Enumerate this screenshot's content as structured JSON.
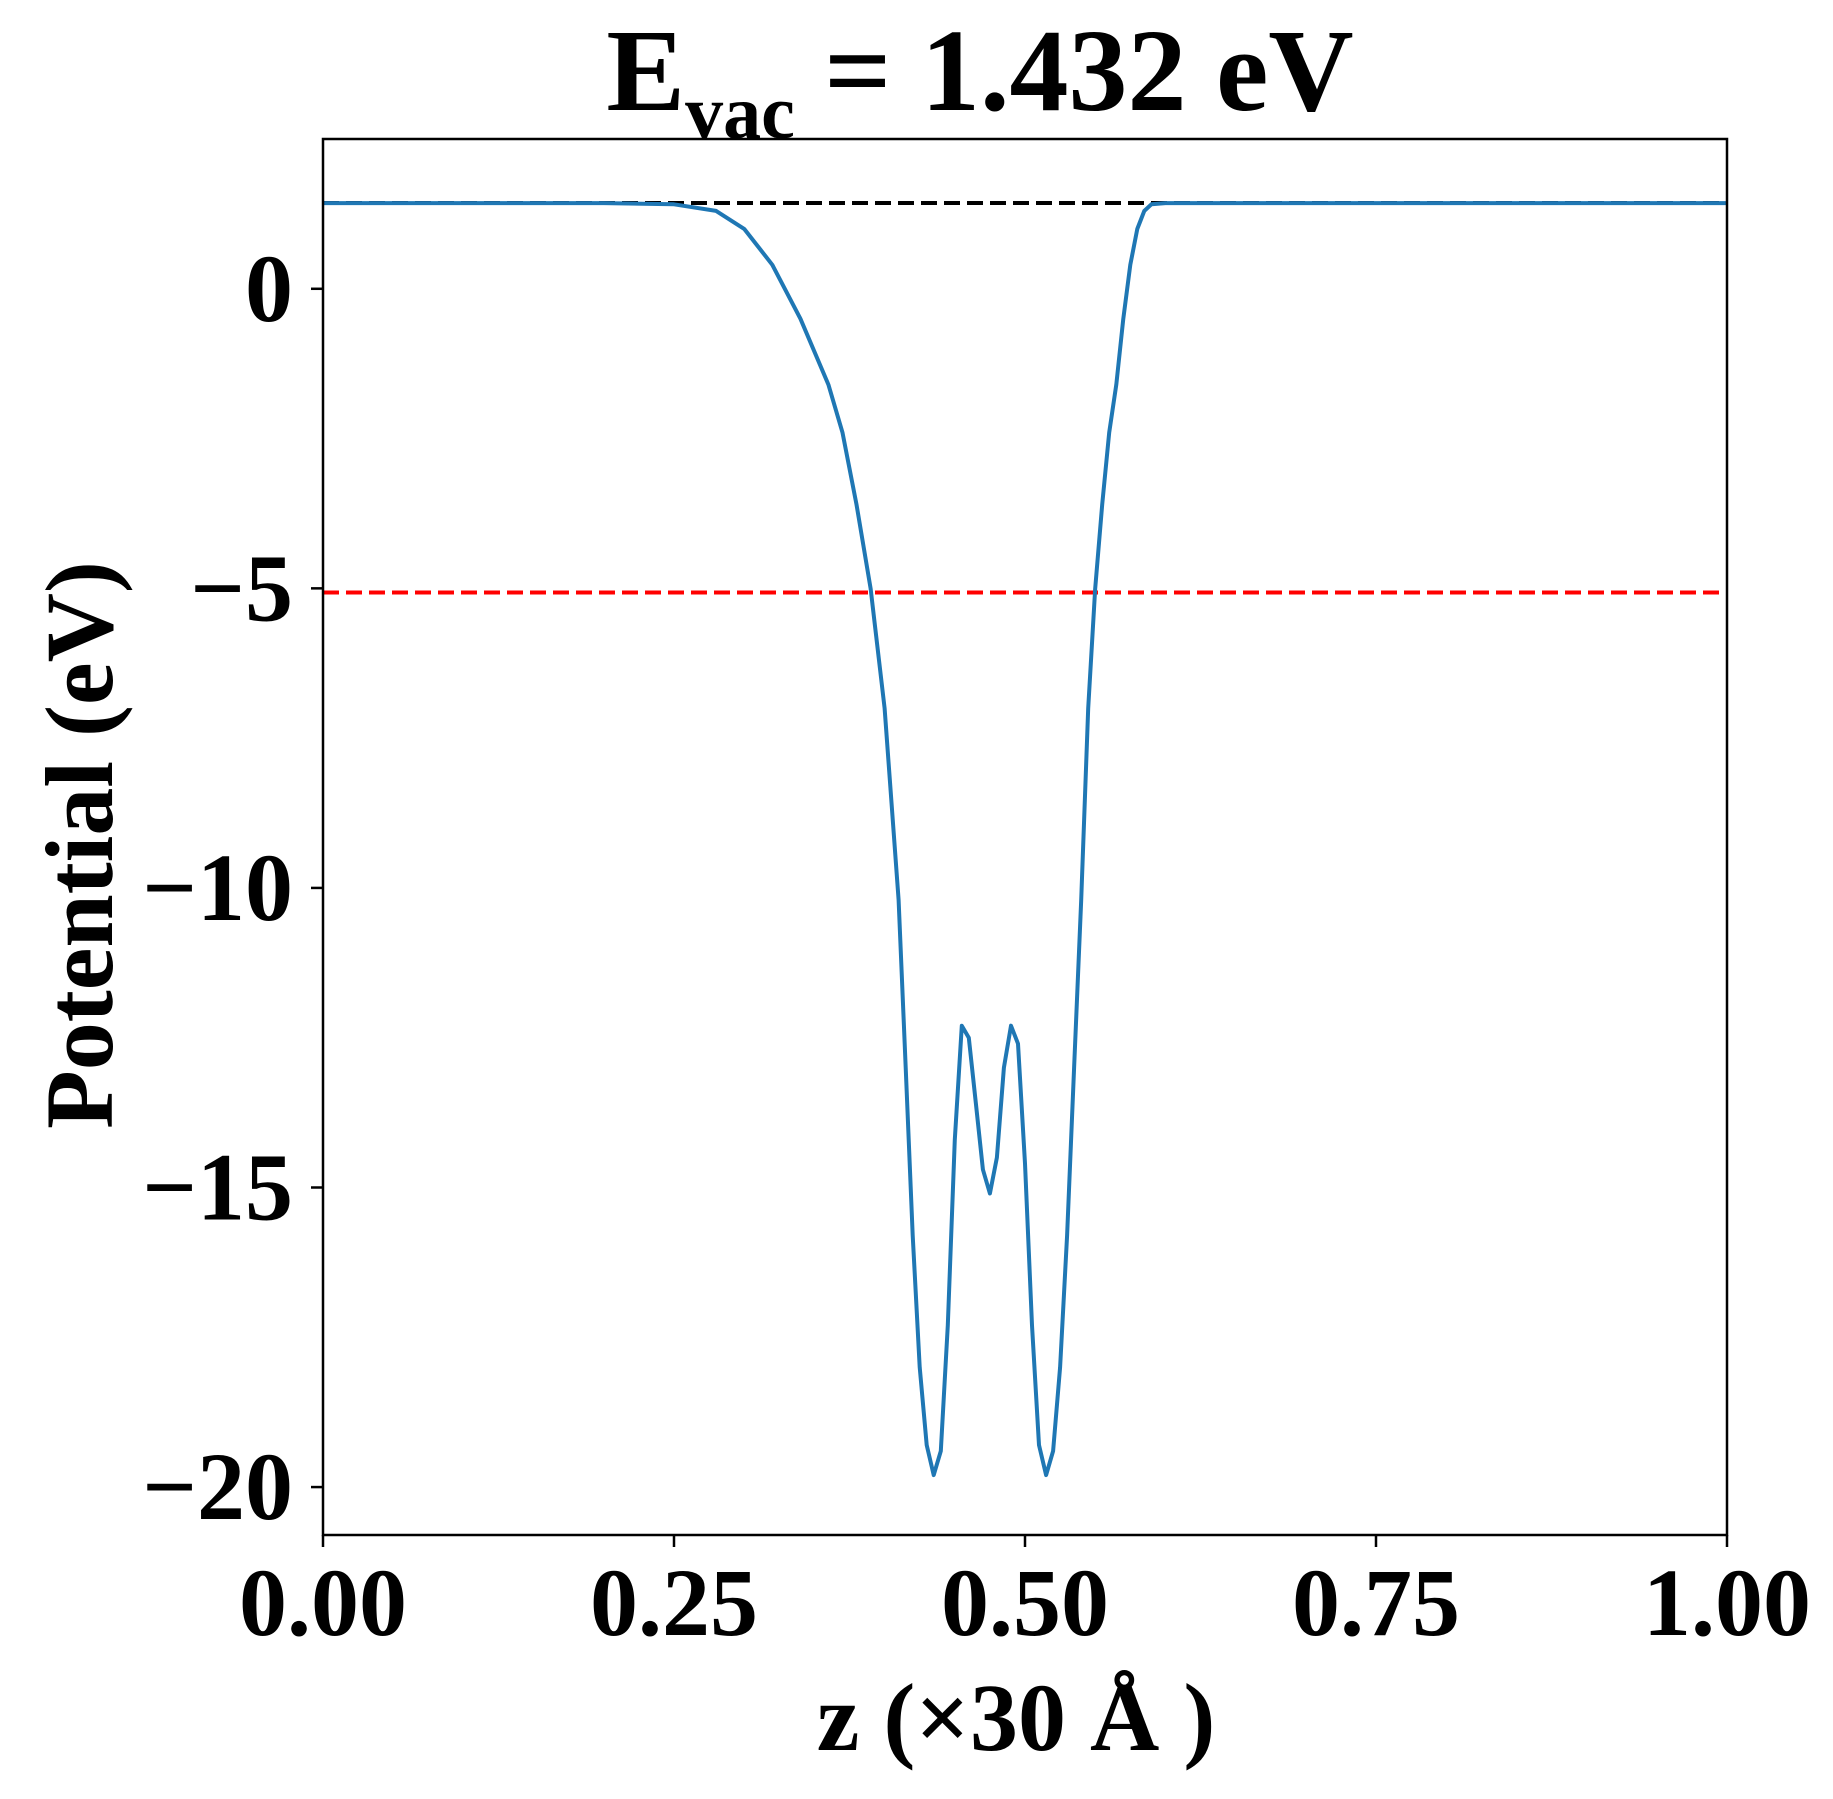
{
  "chart_data": {
    "type": "line",
    "title": {
      "prefix": "E",
      "subscript": "vac",
      "suffix": " = 1.432 eV"
    },
    "xlabel": "z (×30 Å )",
    "ylabel": "Potential (eV)",
    "xlim": [
      0,
      1
    ],
    "ylim": [
      -20.8,
      2.5
    ],
    "xticks": [
      {
        "value": 0.0,
        "label": "0.00"
      },
      {
        "value": 0.25,
        "label": "0.25"
      },
      {
        "value": 0.5,
        "label": "0.50"
      },
      {
        "value": 0.75,
        "label": "0.75"
      },
      {
        "value": 1.0,
        "label": "1.00"
      }
    ],
    "yticks": [
      {
        "value": 0,
        "label": "0"
      },
      {
        "value": -5,
        "label": "−5"
      },
      {
        "value": -10,
        "label": "−10"
      },
      {
        "value": -15,
        "label": "−15"
      },
      {
        "value": -20,
        "label": "−20"
      }
    ],
    "grid": false,
    "series": [
      {
        "color": "#1f77b4",
        "x": [
          0.0,
          0.05,
          0.1,
          0.15,
          0.2,
          0.25,
          0.28,
          0.3,
          0.32,
          0.34,
          0.36,
          0.37,
          0.38,
          0.39,
          0.4,
          0.41,
          0.415,
          0.42,
          0.425,
          0.43,
          0.435,
          0.44,
          0.445,
          0.45,
          0.455,
          0.46,
          0.465,
          0.47,
          0.475,
          0.48,
          0.485,
          0.49,
          0.495,
          0.5,
          0.505,
          0.51,
          0.515,
          0.52,
          0.525,
          0.53,
          0.535,
          0.54,
          0.545,
          0.55,
          0.555,
          0.56,
          0.565,
          0.57,
          0.575,
          0.58,
          0.585,
          0.59,
          0.6,
          0.61,
          0.62,
          0.63,
          0.64,
          0.66,
          0.68,
          0.7,
          0.72,
          0.75,
          0.8,
          0.85,
          0.9,
          0.95,
          1.0
        ],
        "y": [
          1.43,
          1.43,
          1.43,
          1.43,
          1.43,
          1.41,
          1.3,
          1.0,
          0.4,
          -0.5,
          -1.6,
          -2.4,
          -3.6,
          -5.0,
          -7.0,
          -10.2,
          -13.0,
          -15.8,
          -18.0,
          -19.3,
          -19.8,
          -19.4,
          -17.3,
          -14.2,
          -12.3,
          -12.5,
          -13.6,
          -14.7,
          -15.1,
          -14.5,
          -13.0,
          -12.3,
          -12.6,
          -14.6,
          -17.3,
          -19.3,
          -19.8,
          -19.4,
          -18.0,
          -15.8,
          -13.0,
          -10.2,
          -7.0,
          -5.0,
          -3.6,
          -2.4,
          -1.6,
          -0.5,
          0.4,
          1.0,
          1.3,
          1.41,
          1.43,
          1.43,
          1.43,
          1.43,
          1.43,
          1.43,
          1.43,
          1.43,
          1.43,
          1.43,
          1.43,
          1.43,
          1.43,
          1.43,
          1.43
        ]
      }
    ],
    "reference_lines": [
      {
        "y": 1.432,
        "color": "#000000",
        "style": "dashed"
      },
      {
        "y": -5.07,
        "color": "#ff0000",
        "style": "dashed"
      }
    ]
  }
}
